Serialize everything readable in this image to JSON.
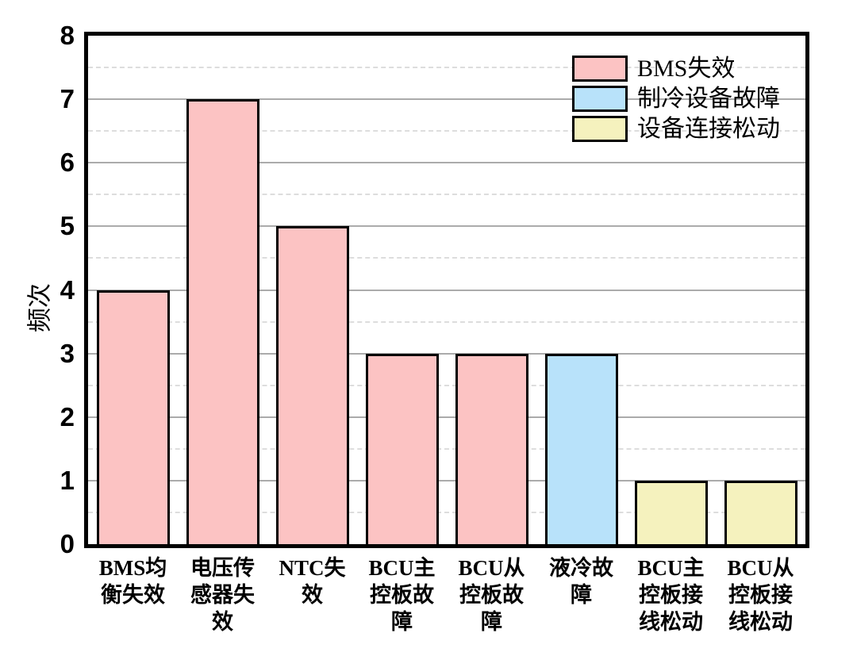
{
  "chart_data": {
    "type": "bar",
    "title": "",
    "xlabel": "",
    "ylabel": "频次",
    "ylim": [
      0,
      8
    ],
    "ytick_step": 1,
    "yticks": [
      0,
      1,
      2,
      3,
      4,
      5,
      6,
      7,
      8
    ],
    "grid": {
      "major_lines": "solid at each integer",
      "minor_lines": "dashed at each half integer",
      "minor_step": 0.5
    },
    "legend_position": "top-right-inside",
    "legend": [
      {
        "label": "BMS失效",
        "color": "#fcc3c3"
      },
      {
        "label": "制冷设备故障",
        "color": "#b8e2fa"
      },
      {
        "label": "设备连接松动",
        "color": "#f5f2be"
      }
    ],
    "categories": [
      "BMS均衡失效",
      "电压传感器失效",
      "NTC失效",
      "BCU主控板故障",
      "BCU从控板故障",
      "液冷故障",
      "BCU主控板接线松动",
      "BCU从控板接线松动"
    ],
    "categories_wrapped": [
      "BMS均\n衡失效",
      "电压传\n感器失\n效",
      "NTC失\n效",
      "BCU主\n控板故\n障",
      "BCU从\n控板故\n障",
      "液冷故\n障",
      "BCU主\n控板接\n线松动",
      "BCU从\n控板接\n线松动"
    ],
    "values": [
      4,
      7,
      5,
      3,
      3,
      3,
      1,
      1
    ],
    "bar_series": [
      "BMS失效",
      "BMS失效",
      "BMS失效",
      "BMS失效",
      "BMS失效",
      "制冷设备故障",
      "设备连接松动",
      "设备连接松动"
    ],
    "colors": {
      "bar_border": "#000000",
      "axis_frame": "#000000",
      "grid_major": "#ababab",
      "grid_minor": "#dddddd",
      "background": "#ffffff",
      "text": "#000000"
    }
  }
}
